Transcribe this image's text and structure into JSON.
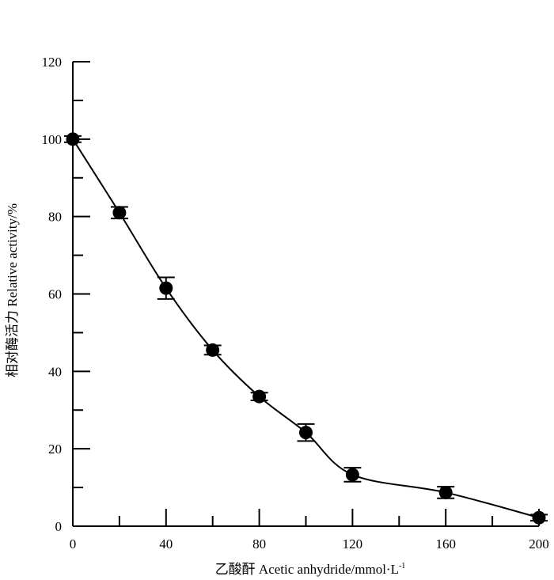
{
  "chart_data": {
    "type": "line",
    "xlabel": "乙酸酐 Acetic anhydride/mmol·L",
    "xlabel_superscript": "-1",
    "ylabel": "相对酶活力 Relative activity/%",
    "xlim": [
      0,
      200
    ],
    "ylim": [
      0,
      120
    ],
    "x_ticks": [
      0,
      40,
      80,
      120,
      160,
      200
    ],
    "y_ticks": [
      0,
      20,
      40,
      60,
      80,
      100,
      120
    ],
    "grid": false,
    "marker": "filled-circle",
    "line_color": "#000000",
    "series": [
      {
        "x": [
          0,
          20,
          40,
          60,
          80,
          100,
          120,
          160,
          200
        ],
        "y": [
          100,
          81,
          61.5,
          45.5,
          33.5,
          24.2,
          13.3,
          8.7,
          2.2
        ],
        "error": [
          0.8,
          1.5,
          2.8,
          1.2,
          1.0,
          2.2,
          1.8,
          1.5,
          0.8
        ]
      }
    ]
  }
}
